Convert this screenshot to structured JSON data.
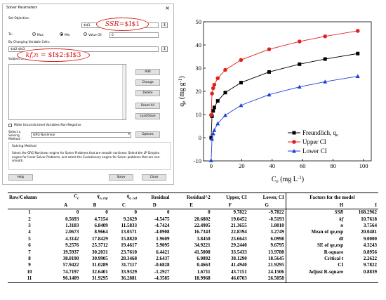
{
  "solver": {
    "title": "Solver Parameters",
    "close_icon": "close-icon",
    "objective_label": "Set Objective:",
    "objective_value": "$I$1",
    "to_label": "To:",
    "max_label": "Max",
    "min_label": "Min",
    "value_of_label": "Value Of:",
    "value_of_value": "0",
    "selected_goal": "Min",
    "changing_label": "By Changing Variable Cells:",
    "changing_value": "$I$2:$I$3",
    "constraints_label": "Subject to the Constraints:",
    "buttons": {
      "add": "Add",
      "change": "Change",
      "delete": "Delete",
      "reset_all": "Reset All",
      "load_save": "Load/Save"
    },
    "unconstrained_label": "Make Unconstrained Variables Non-Negative",
    "method_label": "Select a Solving Method:",
    "method_value": "GRG Nonlinear",
    "options_label": "Options",
    "solving_method_title": "Solving Method",
    "solving_method_text": "Select the GRG Nonlinear engine for Solver Problems that are smooth nonlinear. Select the LP Simplex engine for linear Solver Problems, and select the Evolutionary engine for Solver problems that are non-smooth.",
    "help_label": "Help",
    "solve_label": "Solve",
    "close_label": "Close",
    "annotation_ssr_lhs": "SSR",
    "annotation_ssr_rhs": "=$I$1",
    "annotation_kf_lhs": "kf,n",
    "annotation_kf_rhs": " = $I$2:$I$3"
  },
  "chart": {
    "ylabel": "q",
    "ylabel_sub": "e",
    "ylabel_unit": " (mg g",
    "ylabel_sup": "-1",
    "ylabel_close": ")",
    "xlabel": "C",
    "xlabel_sub": "e",
    "xlabel_unit": " (mg L",
    "xlabel_sup": "-1",
    "xlabel_close": ")",
    "legend_freundlich": "Freundlich, q",
    "legend_freundlich_sub": "e",
    "legend_upper": "Upper CI",
    "legend_lower": "Lower CI"
  },
  "chart_data": {
    "type": "line",
    "xlim": [
      -5,
      105
    ],
    "ylim": [
      -10,
      50
    ],
    "xticks": [
      0,
      20,
      40,
      60,
      80,
      100
    ],
    "yticks": [
      -10,
      0,
      10,
      20,
      30,
      40,
      50
    ],
    "x": [
      0,
      0.5693,
      1.3183,
      2.0673,
      4.3142,
      9.2576,
      19.5937,
      38.019,
      57.9422,
      74.7197,
      96.1409
    ],
    "series": [
      {
        "name": "Freundlich, qe",
        "color": "#000000",
        "marker": "square",
        "values": [
          0,
          9.2629,
          11.5833,
          13.0571,
          15.882,
          19.4617,
          23.761,
          28.3468,
          31.7117,
          33.9329,
          36.2881
        ]
      },
      {
        "name": "Upper CI",
        "color": "#e0221e",
        "marker": "circle",
        "values": [
          9.7822,
          19.0452,
          21.3655,
          22.8394,
          25.6643,
          29.244,
          33.5433,
          38.129,
          41.494,
          43.7151,
          46.0703
        ]
      },
      {
        "name": "Lower CI",
        "color": "#1f3fd6",
        "marker": "triangle",
        "values": [
          -9.7822,
          -0.5193,
          1.801,
          3.2749,
          6.0998,
          9.6795,
          13.9788,
          18.5645,
          21.9295,
          24.1506,
          26.5058
        ]
      }
    ],
    "legend_position": "bottom-right"
  },
  "table": {
    "header": [
      "Row/Column",
      "Ce",
      "qe, exp",
      "qe, cal",
      "Residual",
      "Residual^2",
      "Upper, CI",
      "Lower, CI",
      "Factors for the model"
    ],
    "letters": [
      "",
      "A",
      "B",
      "C",
      "D",
      "E",
      "F",
      "G",
      "H",
      "I"
    ],
    "rows": [
      [
        "1",
        "0",
        "0",
        "0",
        "0",
        "0",
        "9.7822",
        "-9.7822",
        "SSR",
        "168.2962"
      ],
      [
        "2",
        "0.5693",
        "4.7154",
        "9.2629",
        "-4.5475",
        "20.6802",
        "19.0452",
        "-0.5193",
        "kf",
        "10.7618"
      ],
      [
        "3",
        "1.3183",
        "6.8409",
        "11.5833",
        "-4.7424",
        "22.4905",
        "21.3655",
        "1.8010",
        "n",
        "3.7564"
      ],
      [
        "4",
        "2.0673",
        "8.9664",
        "13.0571",
        "-4.0908",
        "16.7343",
        "22.8394",
        "3.2749",
        "Mean of qe,exp",
        "20.0481"
      ],
      [
        "5",
        "4.3142",
        "17.8429",
        "15.8820",
        "1.9609",
        "3.8450",
        "25.6643",
        "6.0998",
        "df",
        "9.0000"
      ],
      [
        "6",
        "9.2576",
        "25.3712",
        "19.4617",
        "5.9095",
        "34.9221",
        "29.2440",
        "9.6795",
        "SE of qe,exp",
        "4.3243"
      ],
      [
        "7",
        "19.5937",
        "30.2031",
        "23.7610",
        "6.4421",
        "41.5008",
        "33.5433",
        "13.9788",
        "R-square",
        "0.8956"
      ],
      [
        "8",
        "38.0190",
        "30.9905",
        "28.3468",
        "2.6437",
        "6.9892",
        "38.1290",
        "18.5645",
        "Critical t",
        "2.2622"
      ],
      [
        "9",
        "57.9422",
        "31.0289",
        "31.7117",
        "-0.6828",
        "0.4663",
        "41.4940",
        "21.9295",
        "CI",
        "9.7822"
      ],
      [
        "10",
        "74.7197",
        "32.6401",
        "33.9329",
        "-1.2927",
        "1.6711",
        "43.7151",
        "24.1506",
        "Adjust R-square",
        "0.8839"
      ],
      [
        "11",
        "96.1409",
        "31.9295",
        "36.2881",
        "-4.3585",
        "18.9968",
        "46.0703",
        "26.5058",
        "",
        ""
      ]
    ]
  }
}
